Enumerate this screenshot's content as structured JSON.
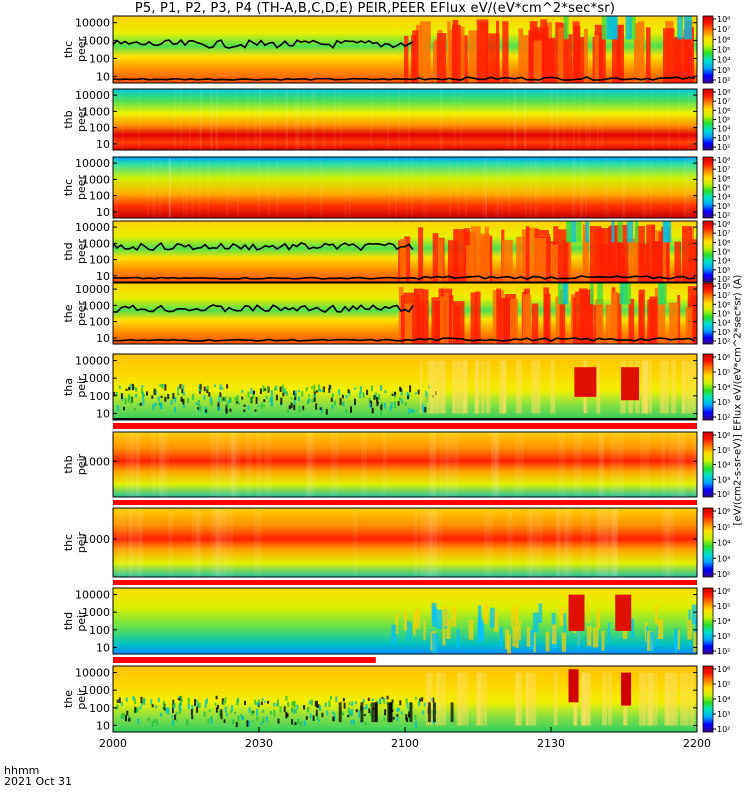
{
  "title": "P5, P1, P2, P3, P4 (TH-A,B,C,D,E) PEIR,PEER EFlux eV/(eV*cm^2*sec*sr)",
  "footer": {
    "time_label": "hhmm",
    "date_label": "2021 Oct 31"
  },
  "colorbar_caption": "[eV/(cm2-s-sr-eV)]  EFlux eV/(eV*cm^2*sec*sr) (A)",
  "colors": {
    "colormap": [
      "#3a0a8c",
      "#0000ff",
      "#00a8ff",
      "#00e0c8",
      "#28e028",
      "#c8f000",
      "#ffe000",
      "#ff8000",
      "#ff1800",
      "#c80000"
    ],
    "trace": "#000000",
    "quality_flag": "#ff0000"
  },
  "chart_data": {
    "type": "heatmap",
    "x_ticks": [
      "2000",
      "2030",
      "2100",
      "2130",
      "2200"
    ],
    "panels": [
      {
        "name": "thc peer",
        "y_ticks": [
          "10000",
          "1000",
          "100",
          "10"
        ],
        "cbar_ticks": [
          "10⁸",
          "10⁷",
          "10⁶",
          "10⁵",
          "10⁴",
          "10³",
          "10²"
        ],
        "description": "electron flux with black energy trace, red bursts after 2100"
      },
      {
        "name": "thb peer",
        "y_ticks": [
          "10000",
          "1000",
          "100",
          "10"
        ],
        "cbar_ticks": [
          "10⁸",
          "10⁷",
          "10⁶",
          "10⁵",
          "10⁴",
          "10³",
          "10²"
        ],
        "description": "steady band"
      },
      {
        "name": "thc peer",
        "y_ticks": [
          "10000",
          "1000",
          "100",
          "10"
        ],
        "cbar_ticks": [
          "10⁸",
          "10⁷",
          "10⁶",
          "10⁵",
          "10⁴",
          "10³",
          "10²"
        ],
        "description": "steady band"
      },
      {
        "name": "thd peer",
        "y_ticks": [
          "10000",
          "1000",
          "100",
          "10"
        ],
        "cbar_ticks": [
          "10⁸",
          "10⁷",
          "10⁶",
          "10⁵",
          "10⁴",
          "10³",
          "10²"
        ],
        "description": "electron flux with black trace"
      },
      {
        "name": "the peer",
        "y_ticks": [
          "10000",
          "1000",
          "100",
          "10"
        ],
        "cbar_ticks": [
          "10⁸",
          "10⁷",
          "10⁶",
          "10⁵",
          "10⁴",
          "10³",
          "10²"
        ],
        "description": "electron flux with black trace"
      },
      {
        "name": "tha peir",
        "y_ticks": [
          "10000",
          "1000",
          "100",
          "10"
        ],
        "cbar_ticks": [
          "10⁶",
          "10⁵",
          "10⁴",
          "10³",
          "10²"
        ],
        "description": "ion flux, red bursts near 2140 and 2150"
      },
      {
        "name": "thb peir",
        "y_ticks": [
          "1000"
        ],
        "cbar_ticks": [
          "10⁶",
          "10⁵",
          "10⁴",
          "10³",
          "10²"
        ],
        "description": "ion flux steady band"
      },
      {
        "name": "thc peir",
        "y_ticks": [
          "1000"
        ],
        "cbar_ticks": [
          "10⁶",
          "10⁵",
          "10⁴",
          "10³",
          "10²"
        ],
        "description": "ion flux steady band"
      },
      {
        "name": "thd peir",
        "y_ticks": [
          "10000",
          "1000",
          "100",
          "10"
        ],
        "cbar_ticks": [
          "10⁶",
          "10⁵",
          "10⁴",
          "10³",
          "10²"
        ],
        "description": "ion flux, red bursts near 2140 and 2150"
      },
      {
        "name": "the peir",
        "y_ticks": [
          "10000",
          "1000",
          "100",
          "10"
        ],
        "cbar_ticks": [
          "10⁶",
          "10⁵",
          "10⁴",
          "10³",
          "10²"
        ],
        "description": "ion flux"
      }
    ]
  }
}
